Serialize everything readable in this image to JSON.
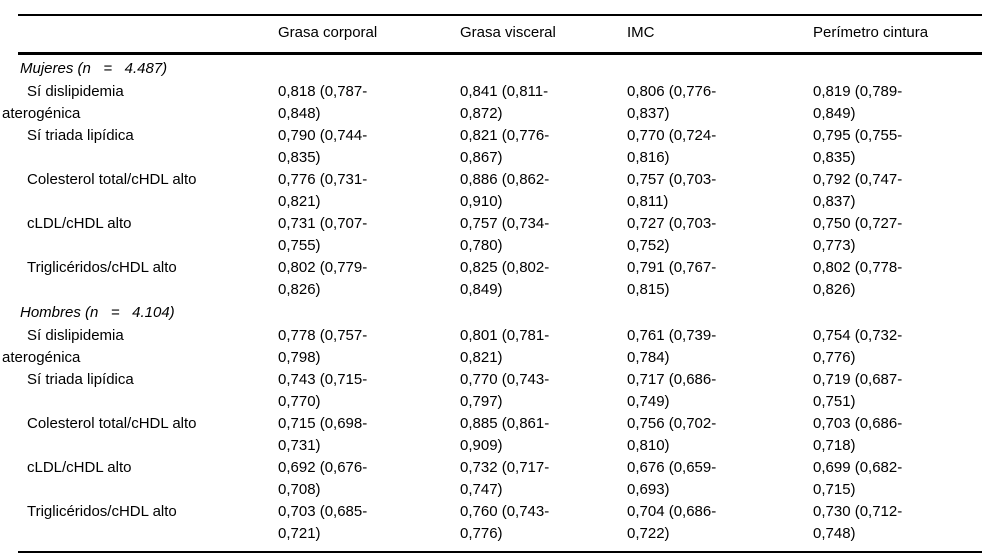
{
  "table": {
    "columns": [
      "",
      "Grasa corporal",
      "Grasa visceral",
      "IMC",
      "Perímetro cintura"
    ],
    "sections": [
      {
        "header": "Mujeres (n   =   4.487)",
        "rows": [
          {
            "label": "Sí dislipidemia\naterogénica",
            "values": [
              "0,818 (0,787-\n0,848)",
              "0,841 (0,811-\n0,872)",
              "0,806 (0,776-\n0,837)",
              "0,819 (0,789-\n0,849)"
            ]
          },
          {
            "label": "Sí triada lipídica",
            "values": [
              "0,790 (0,744-\n0,835)",
              "0,821 (0,776-\n0,867)",
              "0,770 (0,724-\n0,816)",
              "0,795 (0,755-\n0,835)"
            ]
          },
          {
            "label": "Colesterol total/cHDL alto",
            "values": [
              "0,776 (0,731-\n0,821)",
              "0,886 (0,862-\n0,910)",
              "0,757 (0,703-\n0,811)",
              "0,792 (0,747-\n0,837)"
            ]
          },
          {
            "label": "cLDL/cHDL alto",
            "values": [
              "0,731 (0,707-\n0,755)",
              "0,757 (0,734-\n0,780)",
              "0,727 (0,703-\n0,752)",
              "0,750 (0,727-\n0,773)"
            ]
          },
          {
            "label": "Triglicéridos/cHDL alto",
            "values": [
              "0,802 (0,779-\n0,826)",
              "0,825 (0,802-\n0,849)",
              "0,791 (0,767-\n0,815)",
              "0,802 (0,778-\n0,826)"
            ]
          }
        ]
      },
      {
        "header": "Hombres (n   =   4.104)",
        "rows": [
          {
            "label": "Sí dislipidemia\naterogénica",
            "values": [
              "0,778 (0,757-\n0,798)",
              "0,801 (0,781-\n0,821)",
              "0,761 (0,739-\n0,784)",
              "0,754 (0,732-\n0,776)"
            ]
          },
          {
            "label": "Sí triada lipídica",
            "values": [
              "0,743 (0,715-\n0,770)",
              "0,770 (0,743-\n0,797)",
              "0,717 (0,686-\n0,749)",
              "0,719 (0,687-\n0,751)"
            ]
          },
          {
            "label": "Colesterol total/cHDL alto",
            "values": [
              "0,715 (0,698-\n0,731)",
              "0,885 (0,861-\n0,909)",
              "0,756 (0,702-\n0,810)",
              "0,703 (0,686-\n0,718)"
            ]
          },
          {
            "label": "cLDL/cHDL alto",
            "values": [
              "0,692 (0,676-\n0,708)",
              "0,732 (0,717-\n0,747)",
              "0,676 (0,659-\n0,693)",
              "0,699 (0,682-\n0,715)"
            ]
          },
          {
            "label": "Triglicéridos/cHDL alto",
            "values": [
              "0,703 (0,685-\n0,721)",
              "0,760 (0,743-\n0,776)",
              "0,704 (0,686-\n0,722)",
              "0,730 (0,712-\n0,748)"
            ]
          }
        ]
      }
    ]
  }
}
